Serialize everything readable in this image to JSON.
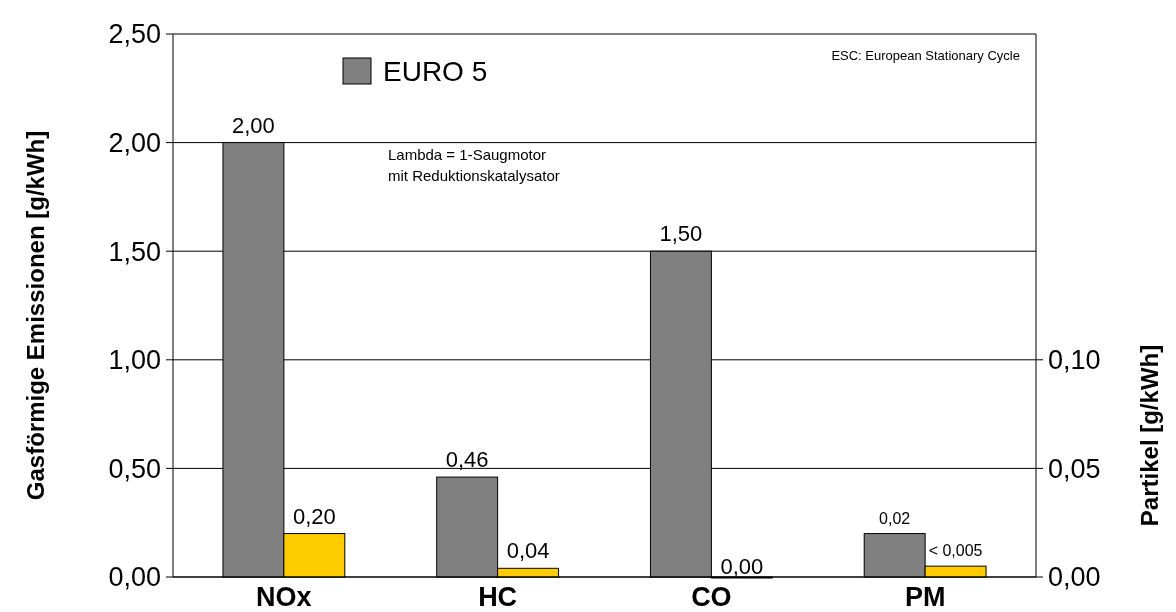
{
  "chart_data": {
    "type": "bar",
    "ylabel": "Gasförmige Emissionen [g/kWh]",
    "y2label": "Partikel [g/kWh]",
    "categories": [
      "NOx",
      "HC",
      "CO",
      "PM"
    ],
    "series": [
      {
        "name": "EURO 5",
        "color": "#808080",
        "values": [
          2.0,
          0.46,
          1.5,
          null
        ],
        "value_labels": [
          "2,00",
          "0,46",
          "1,50",
          null
        ]
      },
      {
        "color": "#ffcc00",
        "values": [
          0.2,
          0.04,
          0.0,
          null
        ],
        "value_labels": [
          "0,20",
          "0,04",
          "0,00",
          null
        ]
      },
      {
        "color": "#808080",
        "axis": "y2",
        "values": [
          null,
          null,
          null,
          0.02
        ],
        "value_labels": [
          null,
          null,
          null,
          "0,02"
        ]
      },
      {
        "color": "#ffcc00",
        "axis": "y2",
        "values": [
          null,
          null,
          null,
          0.005
        ],
        "value_labels": [
          null,
          null,
          null,
          "< 0,005"
        ]
      }
    ],
    "ylim": [
      0,
      2.5
    ],
    "yticks": [
      {
        "value": 0,
        "label": "0,00"
      },
      {
        "value": 0.5,
        "label": "0,50"
      },
      {
        "value": 1,
        "label": "1,00"
      },
      {
        "value": 1.5,
        "label": "1,50"
      },
      {
        "value": 2,
        "label": "2,00"
      },
      {
        "value": 2.5,
        "label": "2,50"
      }
    ],
    "y2lim": [
      0,
      0.25
    ],
    "y2ticks": [
      {
        "value": 0,
        "label": "0,00"
      },
      {
        "value": 0.05,
        "label": "0,05"
      },
      {
        "value": 0.1,
        "label": "0,10"
      }
    ],
    "grid": "y",
    "legend": "top left",
    "annotations": [
      "ESC: European Stationary Cycle",
      "Lambda = 1-Saugmotor\nmit Reduktionskatalysator"
    ]
  }
}
